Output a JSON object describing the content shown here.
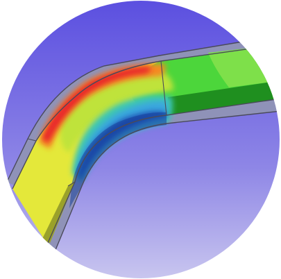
{
  "image": {
    "kind": "circular-cropped FEA stress contour render of a curved pipe bend",
    "background_gradient": [
      "#5b4fe0",
      "#8e86e6",
      "#c9c6ef"
    ],
    "colors": {
      "red": "#e8282a",
      "orange": "#f58a22",
      "yellow": "#e4e83a",
      "yellow_green": "#bfe33a",
      "green": "#4cd63b",
      "light_green": "#7ee04a",
      "teal": "#3cc7b0",
      "cyan": "#3aa7de",
      "blue": "#1e4fb3",
      "dark_blue": "#17409a",
      "dark_green": "#1f8f1f",
      "olive": "#9aa12a",
      "outline": "#4a4a5a",
      "wall": "#8f92b8"
    }
  }
}
